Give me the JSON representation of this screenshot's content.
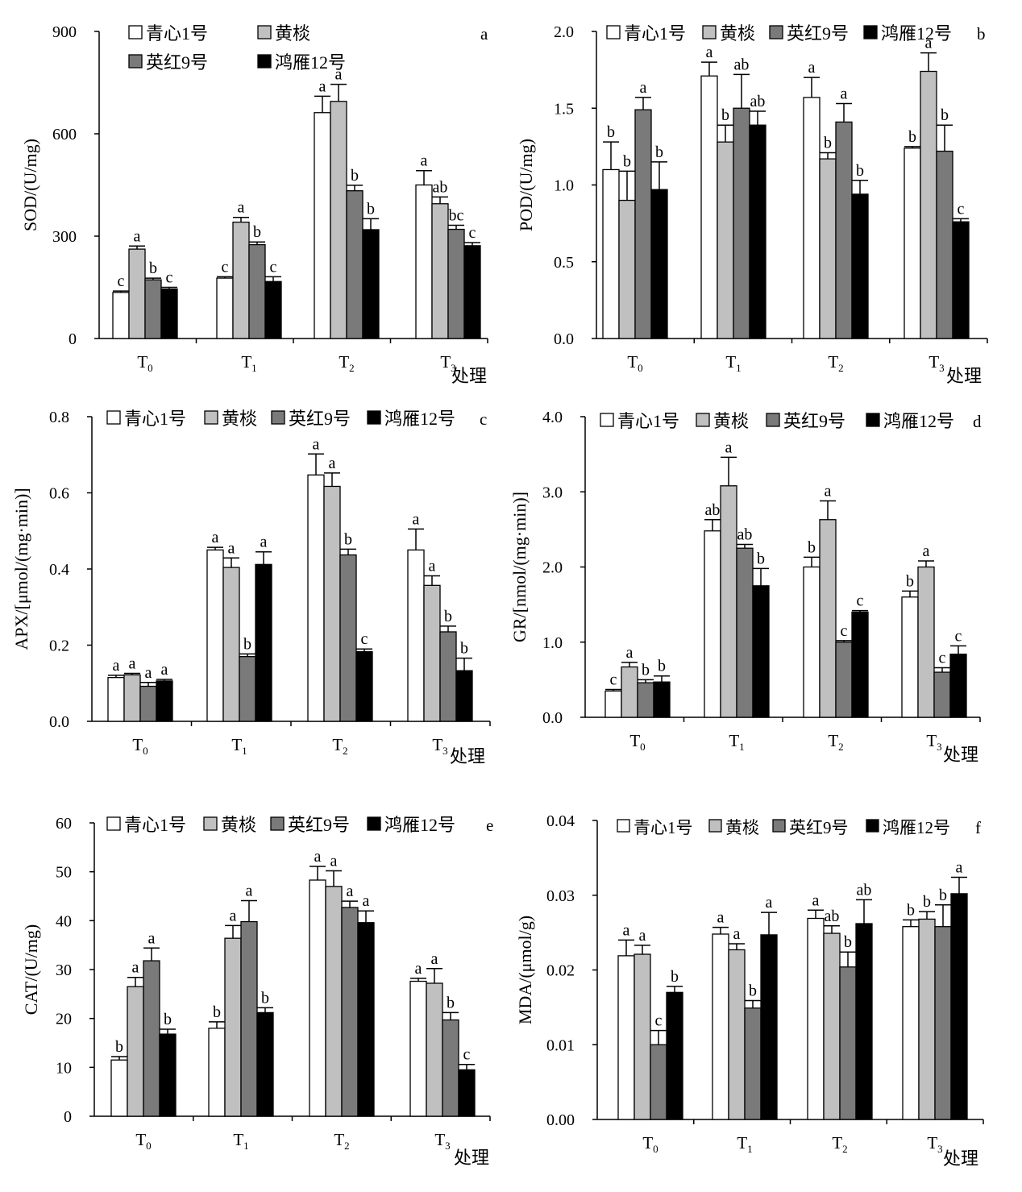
{
  "colors": [
    "#ffffff",
    "#c0c0c0",
    "#7a7a7a",
    "#000000"
  ],
  "legend_names": [
    "青心1号",
    "黄棪",
    "英红9号",
    "鸿雁12号"
  ],
  "chart_data": [
    {
      "type": "bar",
      "panel": "a",
      "ylabel": "SOD/(U/mg)",
      "xlabel": "处理",
      "ylim": [
        0,
        900
      ],
      "yticks": [
        "0",
        "300",
        "600",
        "900"
      ],
      "categories": [
        "T0",
        "T1",
        "T2",
        "T3"
      ],
      "series": [
        {
          "name": "青心1号",
          "values": [
            135,
            177,
            662,
            450
          ],
          "errors": [
            4,
            4,
            48,
            42
          ],
          "letters": [
            "c",
            "c",
            "a",
            "a"
          ]
        },
        {
          "name": "黄棪",
          "values": [
            262,
            341,
            695,
            395
          ],
          "errors": [
            9,
            14,
            50,
            20
          ],
          "letters": [
            "a",
            "a",
            "a",
            "ab"
          ]
        },
        {
          "name": "英红9号",
          "values": [
            172,
            275,
            433,
            320
          ],
          "errors": [
            5,
            8,
            16,
            12
          ],
          "letters": [
            "b",
            "b",
            "b",
            "bc"
          ]
        },
        {
          "name": "鸿雁12号",
          "values": [
            145,
            167,
            319,
            272
          ],
          "errors": [
            5,
            14,
            32,
            9
          ],
          "letters": [
            "c",
            "c",
            "b",
            "c"
          ]
        }
      ]
    },
    {
      "type": "bar",
      "panel": "b",
      "ylabel": "POD/(U/mg)",
      "xlabel": "处理",
      "ylim": [
        0,
        2.0
      ],
      "yticks": [
        "0.0",
        "0.5",
        "1.0",
        "1.5",
        "2.0"
      ],
      "categories": [
        "T0",
        "T1",
        "T2",
        "T3"
      ],
      "series": [
        {
          "name": "青心1号",
          "values": [
            1.1,
            1.71,
            1.57,
            1.24
          ],
          "errors": [
            0.18,
            0.09,
            0.13,
            0.01
          ],
          "letters": [
            "b",
            "a",
            "a",
            "b"
          ]
        },
        {
          "name": "黄棪",
          "values": [
            0.9,
            1.28,
            1.17,
            1.74
          ],
          "errors": [
            0.19,
            0.11,
            0.04,
            0.12
          ],
          "letters": [
            "b",
            "b",
            "b",
            "a"
          ]
        },
        {
          "name": "英红9号",
          "values": [
            1.49,
            1.5,
            1.41,
            1.22
          ],
          "errors": [
            0.08,
            0.22,
            0.12,
            0.17
          ],
          "letters": [
            "a",
            "ab",
            "a",
            "b"
          ]
        },
        {
          "name": "鸿雁12号",
          "values": [
            0.97,
            1.39,
            0.94,
            0.76
          ],
          "errors": [
            0.18,
            0.09,
            0.09,
            0.02
          ],
          "letters": [
            "b",
            "ab",
            "b",
            "c"
          ]
        }
      ]
    },
    {
      "type": "bar",
      "panel": "c",
      "ylabel": "APX/[μmol/(mg·min)]",
      "xlabel": "处理",
      "ylim": [
        0,
        0.8
      ],
      "yticks": [
        "0.0",
        "0.2",
        "0.4",
        "0.6",
        "0.8"
      ],
      "categories": [
        "T0",
        "T1",
        "T2",
        "T3"
      ],
      "series": [
        {
          "name": "青心1号",
          "values": [
            0.115,
            0.45,
            0.647,
            0.45
          ],
          "errors": [
            0.006,
            0.007,
            0.055,
            0.055
          ],
          "letters": [
            "a",
            "a",
            "a",
            "a"
          ]
        },
        {
          "name": "黄棪",
          "values": [
            0.122,
            0.404,
            0.617,
            0.357
          ],
          "errors": [
            0.004,
            0.025,
            0.035,
            0.025
          ],
          "letters": [
            "a",
            "a",
            "a",
            "a"
          ]
        },
        {
          "name": "英红9号",
          "values": [
            0.092,
            0.17,
            0.437,
            0.235
          ],
          "errors": [
            0.01,
            0.007,
            0.015,
            0.015
          ],
          "letters": [
            "a",
            "b",
            "b",
            "b"
          ]
        },
        {
          "name": "鸿雁12号",
          "values": [
            0.106,
            0.412,
            0.183,
            0.133
          ],
          "errors": [
            0.004,
            0.033,
            0.007,
            0.033
          ],
          "letters": [
            "a",
            "a",
            "c",
            "b"
          ]
        }
      ]
    },
    {
      "type": "bar",
      "panel": "d",
      "ylabel": "GR/[nmol/(mg·min)]",
      "xlabel": "处理",
      "ylim": [
        0,
        4.0
      ],
      "yticks": [
        "0.0",
        "1.0",
        "2.0",
        "3.0",
        "4.0"
      ],
      "categories": [
        "T0",
        "T1",
        "T2",
        "T3"
      ],
      "series": [
        {
          "name": "青心1号",
          "values": [
            0.35,
            2.48,
            2.0,
            1.6
          ],
          "errors": [
            0.02,
            0.15,
            0.13,
            0.08
          ],
          "letters": [
            "c",
            "ab",
            "b",
            "b"
          ]
        },
        {
          "name": "黄棪",
          "values": [
            0.67,
            3.08,
            2.63,
            2.0
          ],
          "errors": [
            0.06,
            0.38,
            0.25,
            0.08
          ],
          "letters": [
            "a",
            "a",
            "a",
            "a"
          ]
        },
        {
          "name": "英红9号",
          "values": [
            0.46,
            2.25,
            1.0,
            0.6
          ],
          "errors": [
            0.04,
            0.05,
            0.02,
            0.06
          ],
          "letters": [
            "b",
            "ab",
            "c",
            "c"
          ]
        },
        {
          "name": "鸿雁12号",
          "values": [
            0.47,
            1.75,
            1.4,
            0.84
          ],
          "errors": [
            0.08,
            0.23,
            0.02,
            0.11
          ],
          "letters": [
            "b",
            "b",
            "c",
            "c"
          ]
        }
      ]
    },
    {
      "type": "bar",
      "panel": "e",
      "ylabel": "CAT/(U/mg)",
      "xlabel": "处理",
      "ylim": [
        0,
        60
      ],
      "yticks": [
        "0",
        "10",
        "20",
        "30",
        "40",
        "50",
        "60"
      ],
      "categories": [
        "T0",
        "T1",
        "T2",
        "T3"
      ],
      "series": [
        {
          "name": "青心1号",
          "values": [
            11.5,
            18.0,
            48.3,
            27.6
          ],
          "errors": [
            0.7,
            1.3,
            2.8,
            0.6
          ],
          "letters": [
            "b",
            "b",
            "a",
            "a"
          ]
        },
        {
          "name": "黄棪",
          "values": [
            26.5,
            36.4,
            47.0,
            27.2
          ],
          "errors": [
            1.9,
            2.6,
            3.2,
            3.0
          ],
          "letters": [
            "a",
            "a",
            "a",
            "a"
          ]
        },
        {
          "name": "英红9号",
          "values": [
            31.8,
            39.8,
            42.7,
            19.7
          ],
          "errors": [
            2.6,
            4.3,
            1.3,
            1.5
          ],
          "letters": [
            "a",
            "a",
            "a",
            "b"
          ]
        },
        {
          "name": "鸿雁12号",
          "values": [
            16.8,
            21.2,
            39.6,
            9.5
          ],
          "errors": [
            1.0,
            1.0,
            2.4,
            1.1
          ],
          "letters": [
            "b",
            "b",
            "a",
            "c"
          ]
        }
      ]
    },
    {
      "type": "bar",
      "panel": "f",
      "ylabel": "MDA/(μmol/g)",
      "xlabel": "处理",
      "ylim": [
        0,
        0.04
      ],
      "yticks": [
        "0.00",
        "0.01",
        "0.02",
        "0.03",
        "0.04"
      ],
      "categories": [
        "T0",
        "T1",
        "T2",
        "T3"
      ],
      "series": [
        {
          "name": "青心1号",
          "values": [
            0.0219,
            0.0248,
            0.0269,
            0.0258
          ],
          "errors": [
            0.0021,
            0.0009,
            0.0011,
            0.0009
          ],
          "letters": [
            "a",
            "a",
            "a",
            "b"
          ]
        },
        {
          "name": "黄棪",
          "values": [
            0.0221,
            0.0227,
            0.0249,
            0.0268
          ],
          "errors": [
            0.0012,
            0.0008,
            0.001,
            0.001
          ],
          "letters": [
            "a",
            "a",
            "ab",
            "b"
          ]
        },
        {
          "name": "英红9号",
          "values": [
            0.01,
            0.0149,
            0.0204,
            0.0258
          ],
          "errors": [
            0.0019,
            0.001,
            0.002,
            0.0029
          ],
          "letters": [
            "c",
            "b",
            "b",
            "b"
          ]
        },
        {
          "name": "鸿雁12号",
          "values": [
            0.017,
            0.0247,
            0.0262,
            0.0302
          ],
          "errors": [
            0.0008,
            0.003,
            0.0032,
            0.0022
          ],
          "letters": [
            "b",
            "a",
            "ab",
            "a"
          ]
        }
      ]
    }
  ]
}
